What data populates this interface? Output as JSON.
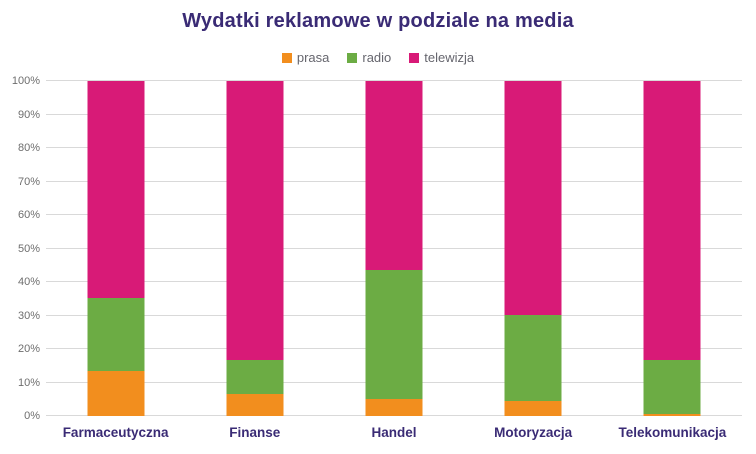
{
  "chart_data": {
    "type": "bar",
    "stacked": true,
    "percent_stacked": true,
    "title": "Wydatki reklamowe w podziale na media",
    "categories": [
      "Farmaceutyczna",
      "Finanse",
      "Handel",
      "Motoryzacja",
      "Telekomunikacja"
    ],
    "series": [
      {
        "name": "prasa",
        "color": "#F28E1E",
        "values": [
          13.4,
          6.5,
          5.2,
          4.4,
          0.6
        ]
      },
      {
        "name": "radio",
        "color": "#6CAC44",
        "values": [
          21.9,
          10.1,
          38.4,
          25.9,
          16.2
        ]
      },
      {
        "name": "telewizja",
        "color": "#D81A77",
        "values": [
          64.7,
          83.4,
          56.4,
          69.7,
          83.2
        ]
      }
    ],
    "ylabel": "",
    "xlabel": "",
    "ylim": [
      0,
      100
    ],
    "ytick_step": 10,
    "ytick_suffix": "%",
    "ytick_labels": [
      "0%",
      "10%",
      "20%",
      "30%",
      "40%",
      "50%",
      "60%",
      "70%",
      "80%",
      "90%",
      "100%"
    ],
    "grid": true,
    "legend_position": "top",
    "colors": {
      "title": "#3A2B75",
      "category_labels": "#3A2B75",
      "tick_labels": "#6E6E6E",
      "legend_text": "#66666E",
      "gridline": "#D9D9D9",
      "background": "#FFFFFF"
    }
  }
}
